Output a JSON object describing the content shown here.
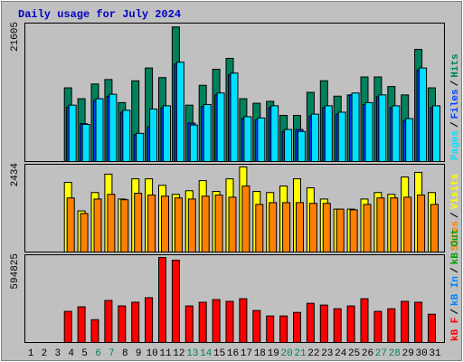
{
  "chart_data": [
    {
      "type": "bar",
      "title": "Daily usage for July 2024",
      "ylim": [
        0,
        21605
      ],
      "yticks": [
        21605
      ],
      "legend_separator": "/",
      "series": [
        {
          "name": "Hits",
          "color": "#00805c",
          "values": [
            null,
            null,
            null,
            11500,
            9800,
            12100,
            12800,
            9200,
            12600,
            14600,
            13100,
            21000,
            8800,
            11900,
            14400,
            16100,
            9800,
            9100,
            9400,
            7200,
            7200,
            10800,
            12600,
            10200,
            10400,
            13200,
            13200,
            11700,
            10400,
            17500,
            11500
          ]
        },
        {
          "name": "Files",
          "color": "#0040ff",
          "values": [
            null,
            null,
            null,
            8500,
            5900,
            9500,
            10200,
            7700,
            4200,
            5400,
            8400,
            15200,
            6000,
            8600,
            10400,
            13500,
            6700,
            6500,
            8400,
            4700,
            5000,
            7100,
            8400,
            7400,
            10400,
            8900,
            10100,
            8400,
            6400,
            14300,
            8400
          ]
        },
        {
          "name": "Pages",
          "color": "#00e0ff",
          "values": [
            null,
            null,
            null,
            8800,
            5800,
            9800,
            10500,
            8000,
            4400,
            8200,
            8700,
            15500,
            5700,
            8900,
            10700,
            13800,
            7000,
            6800,
            8700,
            5000,
            4700,
            7400,
            8700,
            7700,
            10700,
            9200,
            10400,
            8700,
            6700,
            14600,
            8700
          ]
        }
      ]
    },
    {
      "type": "bar",
      "ylim": [
        0,
        2434
      ],
      "yticks": [
        2434
      ],
      "legend_separator": "/",
      "series": [
        {
          "name": "Visits",
          "color": "#ffff00",
          "values": [
            null,
            null,
            null,
            1930,
            1140,
            1650,
            2160,
            1470,
            2030,
            2030,
            1850,
            1600,
            1700,
            1980,
            1680,
            2030,
            2360,
            1680,
            1650,
            1830,
            2030,
            1780,
            1470,
            1190,
            1190,
            1470,
            1650,
            1600,
            2080,
            2210,
            1650
          ]
        },
        {
          "name": "Sites",
          "color": "#ff8000",
          "values": [
            null,
            null,
            null,
            1500,
            1070,
            1470,
            1600,
            1450,
            1630,
            1580,
            1550,
            1500,
            1470,
            1550,
            1580,
            1520,
            1830,
            1320,
            1370,
            1370,
            1370,
            1350,
            1350,
            1190,
            1170,
            1320,
            1500,
            1500,
            1520,
            1580,
            1320
          ]
        }
      ]
    },
    {
      "type": "bar",
      "ylim": [
        0,
        594825
      ],
      "yticks": [
        594825
      ],
      "legend_separator": "/",
      "categories": [
        "1",
        "2",
        "3",
        "4",
        "5",
        "6",
        "7",
        "8",
        "9",
        "10",
        "11",
        "12",
        "13",
        "14",
        "15",
        "16",
        "17",
        "18",
        "19",
        "20",
        "21",
        "22",
        "23",
        "24",
        "25",
        "26",
        "27",
        "28",
        "29",
        "30",
        "31"
      ],
      "category_colors": [
        "#000000",
        "#000000",
        "#000000",
        "#000000",
        "#000000",
        "#00805c",
        "#00805c",
        "#000000",
        "#000000",
        "#000000",
        "#000000",
        "#000000",
        "#00805c",
        "#00805c",
        "#000000",
        "#000000",
        "#000000",
        "#000000",
        "#000000",
        "#00805c",
        "#00805c",
        "#000000",
        "#000000",
        "#000000",
        "#000000",
        "#000000",
        "#00805c",
        "#00805c",
        "#000000",
        "#000000",
        "#000000"
      ],
      "series": [
        {
          "name": "kB Out",
          "color": "#00a000",
          "values": [
            null,
            null,
            null,
            null,
            null,
            null,
            null,
            null,
            null,
            null,
            null,
            null,
            null,
            null,
            null,
            null,
            null,
            null,
            null,
            null,
            null,
            null,
            null,
            null,
            null,
            null,
            null,
            null,
            null,
            null,
            null
          ]
        },
        {
          "name": "kB In",
          "color": "#0080ff",
          "values": [
            null,
            null,
            null,
            null,
            null,
            null,
            null,
            null,
            null,
            null,
            null,
            null,
            null,
            null,
            null,
            null,
            null,
            null,
            null,
            null,
            null,
            null,
            null,
            null,
            null,
            null,
            null,
            null,
            null,
            null,
            null
          ]
        },
        {
          "name": "kB F",
          "color": "#ff0000",
          "values": [
            null,
            null,
            null,
            211000,
            242000,
            155000,
            285000,
            248000,
            273000,
            304000,
            576000,
            558000,
            248000,
            273000,
            291000,
            279000,
            297000,
            217000,
            180000,
            180000,
            204000,
            266000,
            254000,
            229000,
            248000,
            297000,
            211000,
            229000,
            279000,
            273000,
            192000
          ]
        }
      ]
    }
  ]
}
